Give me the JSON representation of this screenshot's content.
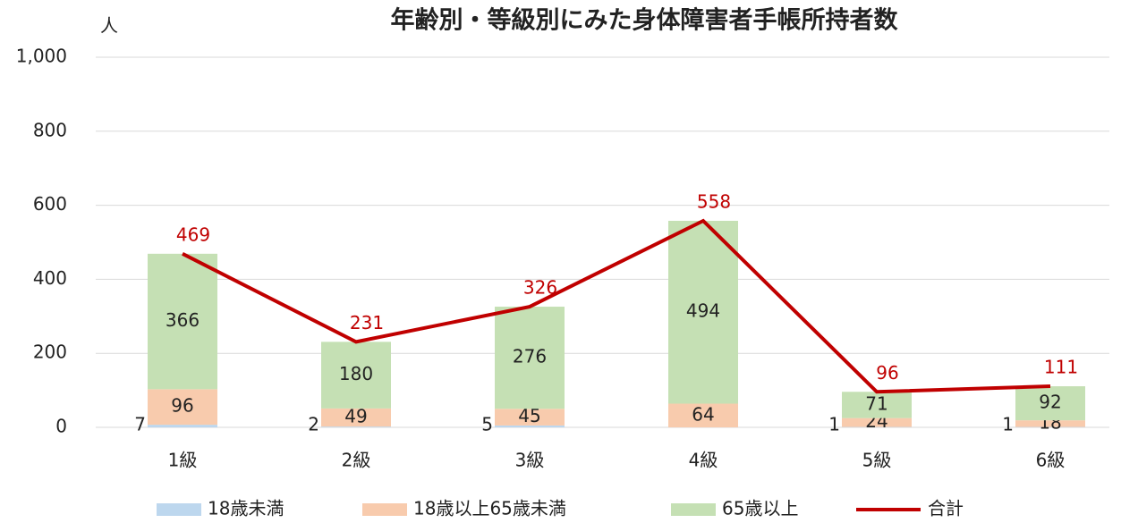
{
  "chart_data": {
    "type": "stacked-bar-line",
    "title": "年齢別・等級別にみた身体障害者手帳所持者数",
    "y_unit": "人",
    "categories": [
      "1級",
      "2級",
      "3級",
      "4級",
      "5級",
      "6級"
    ],
    "series": [
      {
        "name": "18歳未満",
        "color": "#bdd7ee",
        "kind": "bar",
        "values": [
          7,
          2,
          5,
          0,
          1,
          1
        ]
      },
      {
        "name": "18歳以上65歳未満",
        "color": "#f8cbad",
        "kind": "bar",
        "values": [
          96,
          49,
          45,
          64,
          24,
          18
        ]
      },
      {
        "name": "65歳以上",
        "color": "#c5e0b4",
        "kind": "bar",
        "values": [
          366,
          180,
          276,
          494,
          71,
          92
        ]
      },
      {
        "name": "合計",
        "color": "#c00000",
        "kind": "line",
        "values": [
          469,
          231,
          326,
          558,
          96,
          111
        ]
      }
    ],
    "ylim": [
      0,
      1000
    ],
    "yticks": [
      0,
      200,
      400,
      600,
      800,
      {
        "value": 1000,
        "label": "1,000"
      }
    ],
    "grid": true,
    "legend": "bottom"
  }
}
